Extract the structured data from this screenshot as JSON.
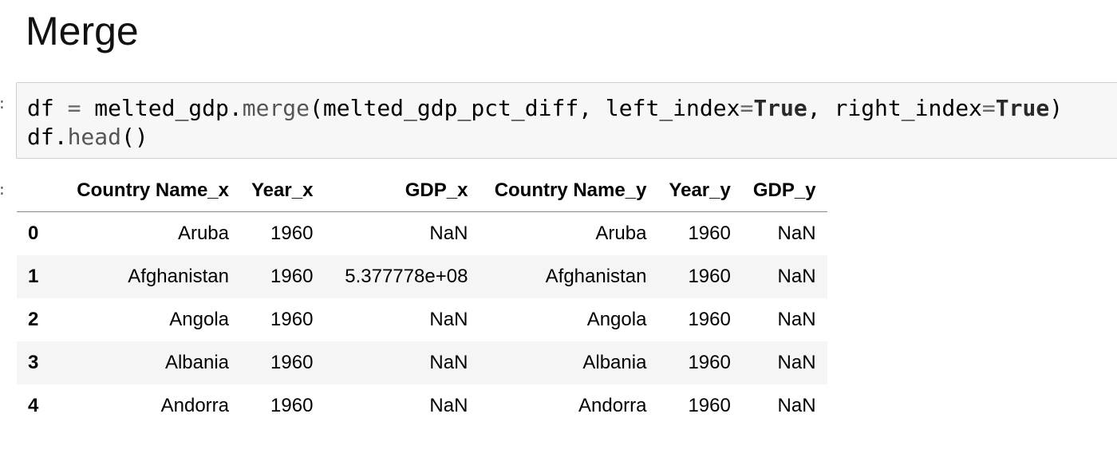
{
  "heading": "Merge",
  "code_cell": {
    "line1": {
      "a": "df",
      "eq": " = ",
      "b": "melted_gdp.",
      "method": "merge",
      "c": "(melted_gdp_pct_diff, left_index",
      "eq2": "=",
      "kw1": "True",
      "d": ", right_index",
      "eq3": "=",
      "kw2": "True",
      "e": ")"
    },
    "line2": {
      "a": "df.",
      "method": "head",
      "b": "()"
    }
  },
  "table": {
    "columns": [
      "",
      "Country Name_x",
      "Year_x",
      "GDP_x",
      "Country Name_y",
      "Year_y",
      "GDP_y"
    ],
    "rows": [
      {
        "index": "0",
        "country_x": "Aruba",
        "year_x": "1960",
        "gdp_x": "NaN",
        "country_y": "Aruba",
        "year_y": "1960",
        "gdp_y": "NaN"
      },
      {
        "index": "1",
        "country_x": "Afghanistan",
        "year_x": "1960",
        "gdp_x": "5.377778e+08",
        "country_y": "Afghanistan",
        "year_y": "1960",
        "gdp_y": "NaN"
      },
      {
        "index": "2",
        "country_x": "Angola",
        "year_x": "1960",
        "gdp_x": "NaN",
        "country_y": "Angola",
        "year_y": "1960",
        "gdp_y": "NaN"
      },
      {
        "index": "3",
        "country_x": "Albania",
        "year_x": "1960",
        "gdp_x": "NaN",
        "country_y": "Albania",
        "year_y": "1960",
        "gdp_y": "NaN"
      },
      {
        "index": "4",
        "country_x": "Andorra",
        "year_x": "1960",
        "gdp_x": "NaN",
        "country_y": "Andorra",
        "year_y": "1960",
        "gdp_y": "NaN"
      }
    ]
  }
}
